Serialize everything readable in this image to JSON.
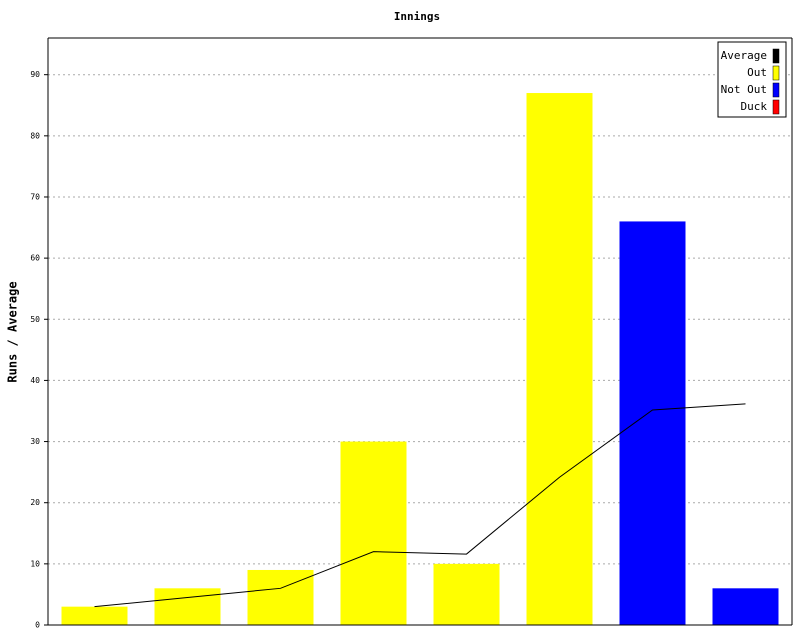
{
  "chart_data": {
    "type": "bar",
    "title": "Innings",
    "y_label": "Runs / Average",
    "categories": [
      null,
      null,
      null,
      null,
      null,
      null,
      null,
      null
    ],
    "series": [
      {
        "name": "Average",
        "color": "#000000",
        "type": "line",
        "values": [
          3,
          4.5,
          6,
          12,
          11.6,
          24.17,
          35.17,
          36.17
        ]
      },
      {
        "name": "Out",
        "color": "#ffff00",
        "values": [
          3,
          6,
          9,
          30,
          10,
          87,
          null,
          null
        ]
      },
      {
        "name": "Not Out",
        "color": "#0000ff",
        "values": [
          null,
          null,
          null,
          null,
          null,
          null,
          66,
          6
        ]
      },
      {
        "name": "Duck",
        "color": "#ff0000",
        "values": [
          null,
          null,
          null,
          null,
          null,
          null,
          null,
          null
        ]
      }
    ],
    "ylim": [
      0,
      96
    ],
    "yticks": [
      0,
      10,
      20,
      30,
      40,
      50,
      60,
      70,
      80,
      90
    ],
    "grid": true,
    "legend": "top-right"
  }
}
